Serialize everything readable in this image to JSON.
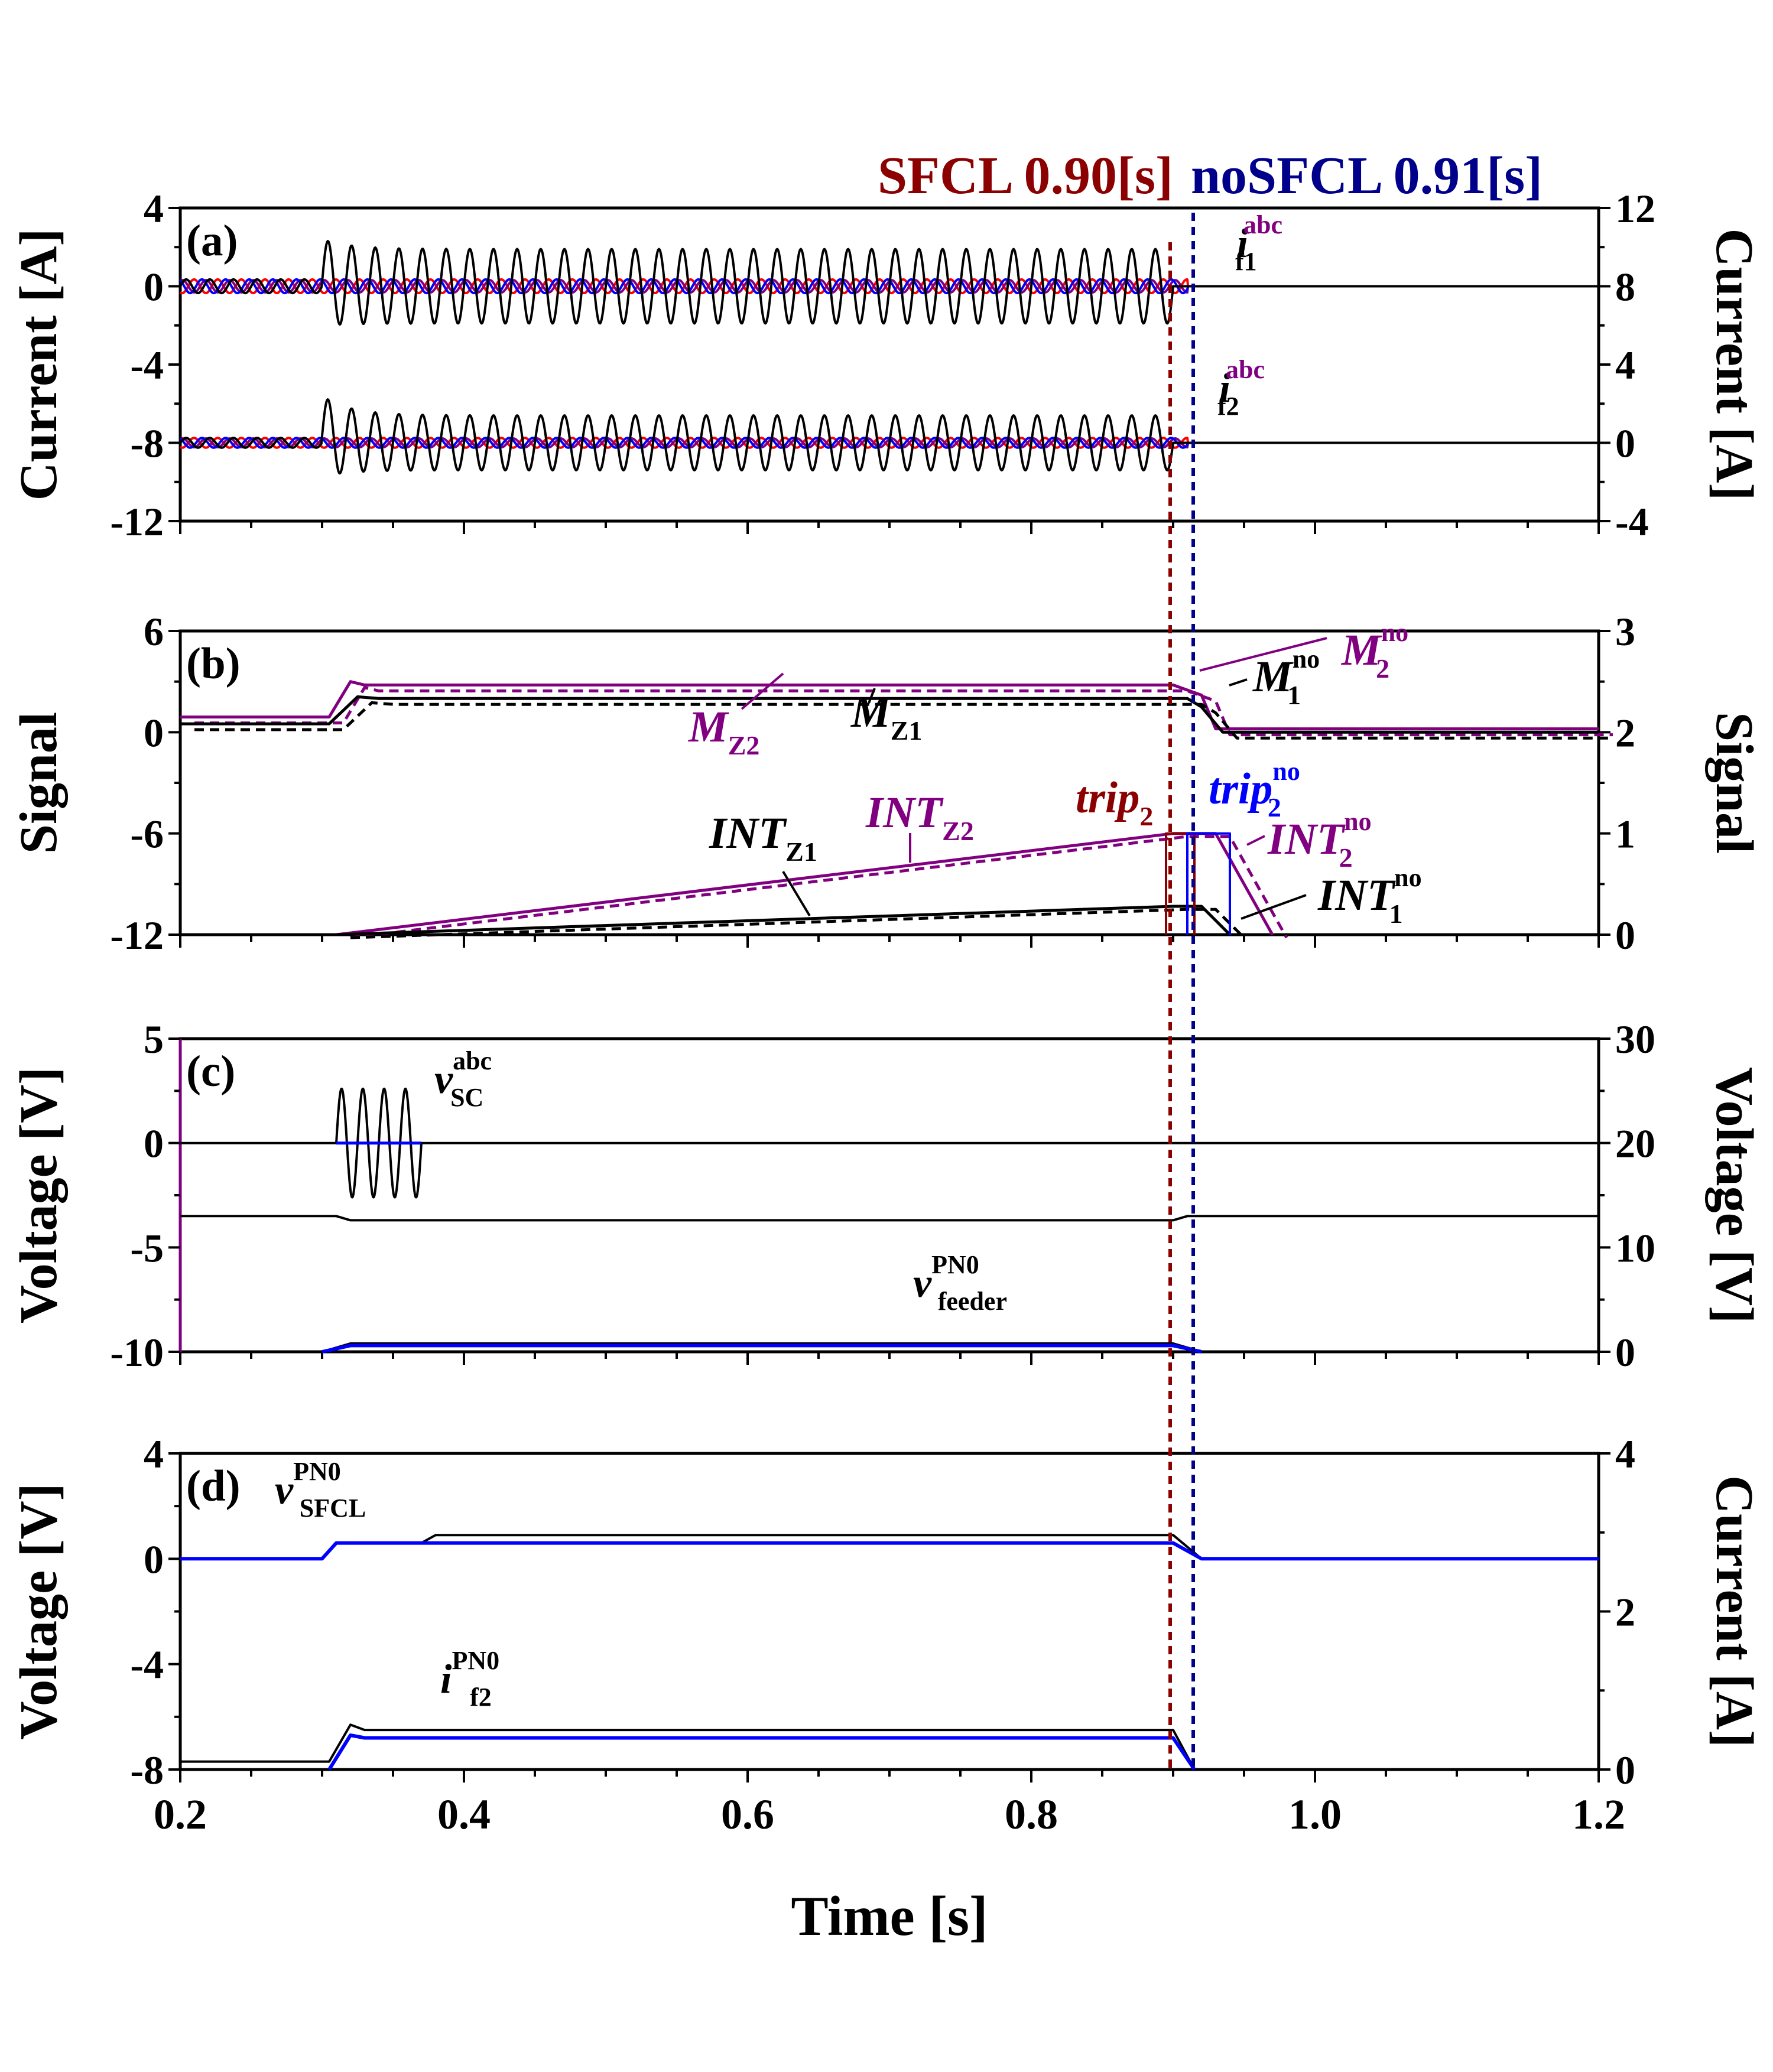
{
  "header": {
    "sfcl_label": "SFCL 0.90[s]",
    "nosfcl_label": "noSFCL 0.91[s]"
  },
  "colors": {
    "black": "#000000",
    "blue": "#0000ff",
    "red": "#ff0000",
    "purple": "#800080",
    "darkred": "#8b0000",
    "navy": "#00008b"
  },
  "chart_data": [
    {
      "id": "a",
      "type": "line",
      "panel_label": "(a)",
      "xlim": [
        0.2,
        1.2
      ],
      "ylim_left": [
        -12,
        4
      ],
      "yticks_left": [
        "4",
        "0",
        "-4",
        "-8",
        "-12"
      ],
      "ylabel_left": "Current [A]",
      "ylim_right": [
        -4,
        12
      ],
      "yticks_right": [
        "12",
        "8",
        "4",
        "0",
        "-4"
      ],
      "ylabel_right": "Current [A]",
      "series": [
        {
          "ref": "if1",
          "offset": 0,
          "fault_start": 0.3,
          "fault_end_sfcl": 0.9,
          "fault_end_nosfcl": 0.91,
          "fault_amplitude": 1.9,
          "peak": 2.4,
          "valley": -2.0,
          "normal_amplitude": 0.35,
          "cycles_per_second": 60
        },
        {
          "ref": "if2",
          "offset": -8,
          "fault_start": 0.3,
          "fault_end_sfcl": 0.9,
          "fault_end_nosfcl": 0.91,
          "fault_amplitude": 1.4,
          "peak": -5.6,
          "valley": -9.7,
          "normal_amplitude": 0.25,
          "cycles_per_second": 60
        }
      ],
      "annotations": [
        {
          "base": "i",
          "sup": "abc",
          "sub": "f1"
        },
        {
          "base": "i",
          "sup": "abc",
          "sub": "f2"
        }
      ]
    },
    {
      "id": "b",
      "type": "line",
      "panel_label": "(b)",
      "xlim": [
        0.2,
        1.2
      ],
      "ylim_left": [
        -12,
        6
      ],
      "yticks_left": [
        "6",
        "0",
        "-6",
        "-12"
      ],
      "ylabel_left": "Signal",
      "ylim_right": [
        0,
        3
      ],
      "yticks_right": [
        "3",
        "2",
        "1",
        "0"
      ],
      "ylabel_right": "Signal",
      "series": [
        {
          "ref": "MZ2",
          "points": [
            [
              0.2,
              0.9
            ],
            [
              0.305,
              0.9
            ],
            [
              0.32,
              3.0
            ],
            [
              0.33,
              2.8
            ],
            [
              0.9,
              2.8
            ],
            [
              0.92,
              2.2
            ],
            [
              0.93,
              0.2
            ],
            [
              1.2,
              0.2
            ]
          ]
        },
        {
          "ref": "MZ1",
          "points": [
            [
              0.2,
              0.5
            ],
            [
              0.305,
              0.5
            ],
            [
              0.325,
              2.1
            ],
            [
              0.34,
              2.0
            ],
            [
              0.91,
              2.0
            ],
            [
              0.92,
              1.5
            ],
            [
              0.935,
              0.0
            ],
            [
              1.2,
              0.0
            ]
          ]
        },
        {
          "ref": "INTZ2",
          "points": [
            [
              0.31,
              0.0
            ],
            [
              0.9,
              1.0
            ],
            [
              0.93,
              1.0
            ],
            [
              0.97,
              0.0
            ]
          ]
        },
        {
          "ref": "INTZ1",
          "points": [
            [
              0.31,
              0.0
            ],
            [
              0.9,
              0.28
            ],
            [
              0.92,
              0.28
            ],
            [
              0.94,
              0.0
            ]
          ]
        }
      ],
      "annotations": [
        {
          "base": "M",
          "sub": "Z2"
        },
        {
          "base": "M",
          "sub": "Z1"
        },
        {
          "base": "M",
          "sup": "no",
          "sub": "1"
        },
        {
          "base": "M",
          "sup": "no",
          "sub": "2"
        },
        {
          "base": "INT",
          "sub": "Z1"
        },
        {
          "base": "INT",
          "sub": "Z2"
        },
        {
          "base": "trip",
          "sub": "2"
        },
        {
          "base": "trip",
          "sup": "no",
          "sub": "2"
        },
        {
          "base": "INT",
          "sup": "no",
          "sub": "2"
        },
        {
          "base": "INT",
          "sup": "no",
          "sub": "1"
        }
      ]
    },
    {
      "id": "c",
      "type": "line",
      "panel_label": "(c)",
      "xlim": [
        0.2,
        1.2
      ],
      "ylim_left": [
        -10,
        5
      ],
      "yticks_left": [
        "5",
        "0",
        "-5",
        "-10"
      ],
      "ylabel_left": "Voltage [V]",
      "ylim_right": [
        0,
        30
      ],
      "yticks_right": [
        "30",
        "20",
        "10",
        "0"
      ],
      "ylabel_right": "Voltage [V]",
      "series": [
        {
          "ref": "vsc_flat",
          "points": [
            [
              0.2,
              0.0
            ],
            [
              1.2,
              0.0
            ]
          ]
        },
        {
          "ref": "vsc_burst",
          "start": 0.31,
          "end": 0.37,
          "amplitude": 2.6,
          "cycles": 4
        },
        {
          "ref": "vfeeder_ref",
          "points": [
            [
              0.2,
              -3.5
            ],
            [
              0.31,
              -3.5
            ],
            [
              0.32,
              -3.7
            ],
            [
              0.9,
              -3.7
            ],
            [
              0.91,
              -3.5
            ],
            [
              1.2,
              -3.5
            ]
          ]
        },
        {
          "ref": "vfeeder_low",
          "points": [
            [
              0.3,
              -10.0
            ],
            [
              0.32,
              -9.6
            ],
            [
              0.9,
              -9.6
            ],
            [
              0.92,
              -10.0
            ]
          ]
        }
      ],
      "annotations": [
        {
          "base": "v",
          "sup": "abc",
          "sub": "SC"
        },
        {
          "base": "v",
          "sup": "PN0",
          "sub": "feeder"
        }
      ]
    },
    {
      "id": "d",
      "type": "line",
      "panel_label": "(d)",
      "xlim": [
        0.2,
        1.2
      ],
      "ylim_left": [
        -8,
        4
      ],
      "yticks_left": [
        "4",
        "0",
        "-4",
        "-8"
      ],
      "ylabel_left": "Voltage [V]",
      "ylim_right": [
        0,
        4
      ],
      "yticks_right": [
        "4",
        "2",
        "0"
      ],
      "ylabel_right": "Current [A]",
      "xticks": [
        "0.2",
        "0.4",
        "0.6",
        "0.8",
        "1.0",
        "1.2"
      ],
      "xlabel": "Time [s]",
      "series": [
        {
          "ref": "vsfcl_black",
          "points": [
            [
              0.2,
              0.0
            ],
            [
              0.3,
              0.0
            ],
            [
              0.31,
              0.6
            ],
            [
              0.37,
              0.6
            ],
            [
              0.38,
              0.9
            ],
            [
              0.9,
              0.9
            ],
            [
              0.92,
              0.0
            ],
            [
              1.2,
              0.0
            ]
          ]
        },
        {
          "ref": "vsfcl_blue",
          "points": [
            [
              0.2,
              0.0
            ],
            [
              0.3,
              0.0
            ],
            [
              0.31,
              0.6
            ],
            [
              0.9,
              0.6
            ],
            [
              0.92,
              0.0
            ],
            [
              1.2,
              0.0
            ]
          ]
        },
        {
          "ref": "if2_black",
          "points": [
            [
              0.2,
              -7.7
            ],
            [
              0.305,
              -7.7
            ],
            [
              0.32,
              -6.3
            ],
            [
              0.33,
              -6.5
            ],
            [
              0.9,
              -6.5
            ],
            [
              0.915,
              -8.0
            ]
          ]
        },
        {
          "ref": "if2_blue",
          "points": [
            [
              0.305,
              -8.0
            ],
            [
              0.32,
              -6.7
            ],
            [
              0.33,
              -6.8
            ],
            [
              0.9,
              -6.8
            ],
            [
              0.915,
              -8.0
            ]
          ]
        }
      ],
      "annotations": [
        {
          "base": "v",
          "sup": "PN0",
          "sub": "SFCL"
        },
        {
          "base": "i",
          "sup": "PN0",
          "sub": "f2"
        }
      ]
    }
  ]
}
